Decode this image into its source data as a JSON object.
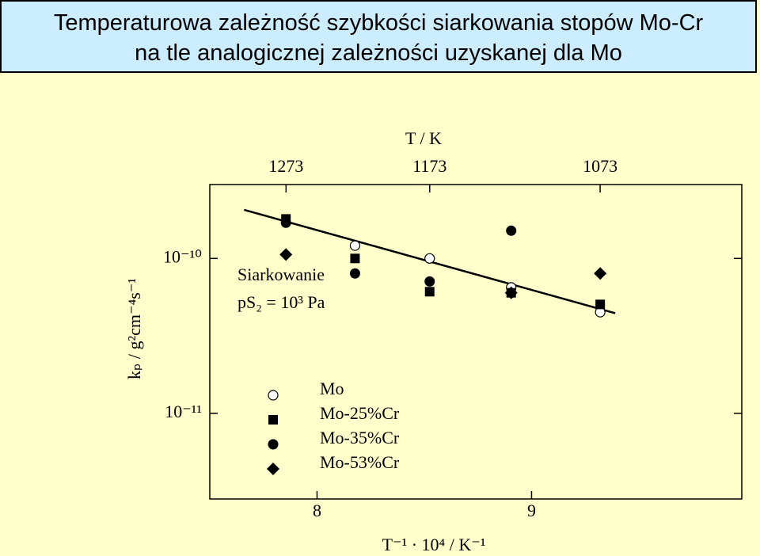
{
  "chart_data": {
    "type": "scatter",
    "title_lines": [
      "Temperaturowa zależność szybkości siarkowania stopów Mo-Cr",
      "na tle analogicznej zależności uzyskanej dla Mo"
    ],
    "x_label": "T⁻¹ · 10⁴ / K⁻¹",
    "y_label": "kₚ / g²cm⁻⁴s⁻¹",
    "x2_label": "T / K",
    "annotations": [
      "Siarkowanie",
      "pS₂ = 10³ Pa"
    ],
    "x": [
      7.855,
      8.177,
      8.525,
      8.905,
      9.32
    ],
    "series": [
      {
        "name": "Mo",
        "color": "#000000",
        "marker": "circle-open",
        "values": [
          null,
          1.21e-10,
          1e-10,
          6.5e-11,
          4.5e-11
        ]
      },
      {
        "name": "Mo-25%Cr",
        "color": "#000000",
        "marker": "square",
        "values": [
          1.8e-10,
          1e-10,
          6.1e-11,
          6e-11,
          5.05e-11
        ]
      },
      {
        "name": "Mo-35%Cr",
        "color": "#000000",
        "marker": "circle",
        "values": [
          1.7e-10,
          8e-11,
          7.1e-11,
          1.51e-10,
          null
        ]
      },
      {
        "name": "Mo-53%Cr",
        "color": "#000000",
        "marker": "diamond",
        "values": [
          1.06e-10,
          null,
          null,
          6e-11,
          8e-11
        ]
      }
    ],
    "fit_line": {
      "x": [
        7.66,
        9.39
      ],
      "values": [
        2.06e-10,
        4.43e-11
      ]
    },
    "xlim": [
      7.5,
      9.98
    ],
    "xticks": [
      8,
      9
    ],
    "x2ticks": [
      1273,
      1173,
      1073
    ],
    "ylim": [
      2.8e-12,
      3e-10
    ],
    "ylog": true,
    "yticks": [
      {
        "value": 1e-10,
        "label": "10⁻¹⁰"
      },
      {
        "value": 1e-11,
        "label": "10⁻¹¹"
      }
    ]
  }
}
